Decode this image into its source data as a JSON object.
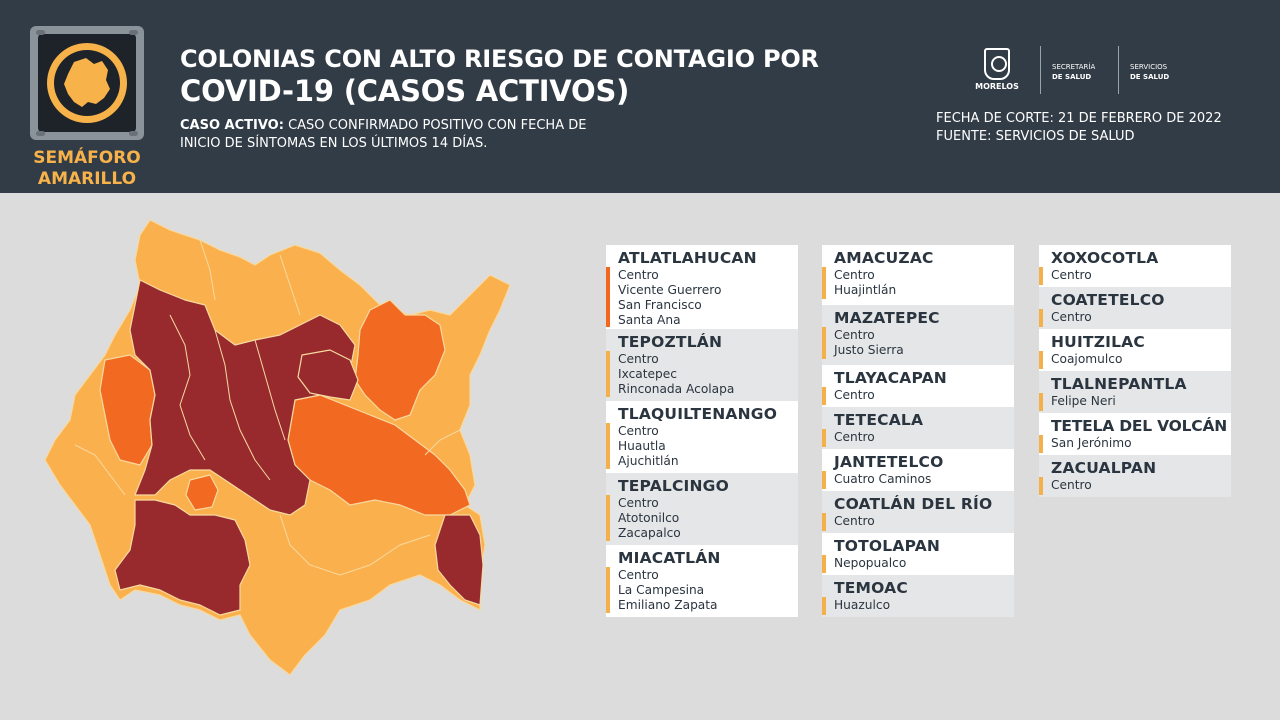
{
  "header": {
    "badge_label_1": "SEMÁFORO",
    "badge_label_2": "AMARILLO",
    "title_line1": "COLONIAS CON ALTO RIESGO DE CONTAGIO POR",
    "title_line2": "COVID-19 (CASOS ACTIVOS)",
    "definition_term": "CASO ACTIVO:",
    "definition_text_1": "CASO CONFIRMADO POSITIVO CON FECHA DE",
    "definition_text_2": "INICIO DE SÍNTOMAS EN LOS ÚLTIMOS 14 DÍAS.",
    "fecha_corte": "FECHA DE CORTE: 21 DE FEBRERO DE 2022",
    "fuente": "FUENTE: SERVICIOS DE SALUD",
    "logos": {
      "morelos": "MORELOS",
      "secretaria_1": "SECRETARÍA",
      "secretaria_2": "DE SALUD",
      "servicios_1": "SERVICIOS",
      "servicios_2": "DE SALUD"
    }
  },
  "colors": {
    "header_bg": "#323c46",
    "badge_accent": "#f7b24a",
    "dark_red": "#982a2d",
    "orange": "#f26a21",
    "light_orange": "#fbb04e",
    "bar_orange": "#f0671d",
    "bar_yellow": "#f4b04a"
  },
  "map_legend_note": "",
  "columns": [
    [
      {
        "municipio": "ATLATLAHUCAN",
        "colonias": [
          "Centro",
          "Vicente Guerrero",
          "San Francisco",
          "Santa Ana"
        ]
      },
      {
        "municipio": "TEPOZTLÁN",
        "colonias": [
          "Centro",
          "Ixcatepec",
          "Rinconada Acolapa"
        ]
      },
      {
        "municipio": "TLAQUILTENANGO",
        "colonias": [
          "Centro",
          "Huautla",
          "Ajuchitlán"
        ]
      },
      {
        "municipio": "TEPALCINGO",
        "colonias": [
          "Centro",
          "Atotonilco",
          "Zacapalco"
        ]
      },
      {
        "municipio": "MIACATLÁN",
        "colonias": [
          "Centro",
          "La Campesina",
          "Emiliano Zapata"
        ]
      }
    ],
    [
      {
        "municipio": "AMACUZAC",
        "colonias": [
          "Centro",
          "Huajintlán"
        ]
      },
      {
        "municipio": "MAZATEPEC",
        "colonias": [
          "Centro",
          "Justo Sierra"
        ]
      },
      {
        "municipio": "TLAYACAPAN",
        "colonias": [
          "Centro"
        ]
      },
      {
        "municipio": "TETECALA",
        "colonias": [
          "Centro"
        ]
      },
      {
        "municipio": "JANTETELCO",
        "colonias": [
          "Cuatro Caminos"
        ]
      },
      {
        "municipio": "COATLÁN DEL RÍO",
        "colonias": [
          "Centro"
        ]
      },
      {
        "municipio": "TOTOLAPAN",
        "colonias": [
          "Nepopualco"
        ]
      },
      {
        "municipio": "TEMOAC",
        "colonias": [
          "Huazulco"
        ]
      }
    ],
    [
      {
        "municipio": "XOXOCOTLA",
        "colonias": [
          "Centro"
        ]
      },
      {
        "municipio": "COATETELCO",
        "colonias": [
          "Centro"
        ]
      },
      {
        "municipio": "HUITZILAC",
        "colonias": [
          "Coajomulco"
        ]
      },
      {
        "municipio": "TLALNEPANTLA",
        "colonias": [
          "Felipe Neri"
        ]
      },
      {
        "municipio": "TETELA DEL VOLCÁN",
        "colonias": [
          "San Jerónimo"
        ]
      },
      {
        "municipio": "ZACUALPAN",
        "colonias": [
          "Centro"
        ]
      }
    ]
  ]
}
